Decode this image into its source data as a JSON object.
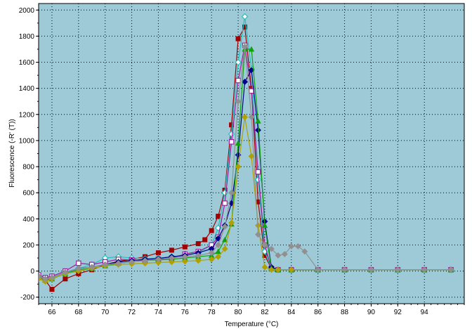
{
  "chart_data": {
    "type": "line",
    "title": "",
    "xlabel": "Temperature (°C)",
    "ylabel": "Fluorescence (-R' (T))",
    "xlim": [
      65,
      97
    ],
    "ylim": [
      -250,
      2050
    ],
    "x_tick_labels": [
      "66",
      "68",
      "70",
      "72",
      "74",
      "76",
      "78",
      "80",
      "82",
      "84",
      "86",
      "88",
      "90",
      "92",
      "94"
    ],
    "y_tick_labels": [
      "-200",
      "0",
      "200",
      "400",
      "600",
      "800",
      "1000",
      "1200",
      "1400",
      "1600",
      "1800",
      "2000"
    ],
    "grid": true,
    "legend": "none",
    "plot_background": "#9ECAD8",
    "series": [
      {
        "color": "#A00000",
        "marker": "square-filled",
        "x": [
          65,
          65.5,
          66,
          67,
          68,
          69,
          70,
          71,
          72,
          73,
          74,
          75,
          76,
          77,
          77.5,
          78,
          78.5,
          79,
          79.5,
          80,
          80.5,
          81,
          81.5,
          82,
          82.5,
          83,
          84,
          86,
          88,
          90,
          92,
          94,
          96
        ],
        "y": [
          -50,
          -70,
          -140,
          -60,
          -20,
          10,
          50,
          75,
          90,
          110,
          140,
          160,
          185,
          210,
          240,
          310,
          420,
          620,
          1120,
          1780,
          1870,
          1400,
          530,
          120,
          20,
          10,
          10,
          10,
          10,
          10,
          10,
          10,
          10
        ]
      },
      {
        "color": "#20C0C0",
        "marker": "diamond-open",
        "x": [
          65,
          65.5,
          66,
          67,
          68,
          69,
          70,
          71,
          72,
          73,
          74,
          75,
          76,
          77,
          78,
          78.5,
          79,
          79.5,
          80,
          80.5,
          81,
          81.5,
          82,
          82.5,
          83,
          84,
          86,
          88,
          90,
          92,
          94,
          96
        ],
        "y": [
          -40,
          -70,
          -60,
          -20,
          20,
          50,
          100,
          110,
          100,
          95,
          100,
          110,
          120,
          140,
          200,
          330,
          600,
          1050,
          1600,
          1950,
          1550,
          700,
          150,
          20,
          10,
          10,
          10,
          10,
          10,
          10,
          10,
          10
        ]
      },
      {
        "color": "#A020A0",
        "marker": "square-open",
        "x": [
          65,
          65.5,
          66,
          67,
          68,
          69,
          70,
          71,
          72,
          73,
          74,
          75,
          76,
          77,
          78,
          78.5,
          79,
          79.5,
          80,
          80.5,
          81,
          81.5,
          82,
          82.5,
          83,
          84,
          86,
          88,
          90,
          92,
          94,
          96
        ],
        "y": [
          -30,
          -50,
          -40,
          0,
          60,
          50,
          70,
          90,
          85,
          80,
          90,
          100,
          130,
          150,
          200,
          260,
          520,
          990,
          1460,
          1730,
          1380,
          760,
          200,
          20,
          10,
          10,
          10,
          10,
          10,
          10,
          10,
          10
        ]
      },
      {
        "color": "#00008B",
        "marker": "diamond-filled",
        "x": [
          65,
          65.5,
          66,
          67,
          68,
          69,
          70,
          71,
          72,
          73,
          74,
          75,
          76,
          77,
          78,
          78.5,
          79,
          79.5,
          80,
          80.5,
          81,
          81.5,
          82,
          82.5,
          83,
          84,
          86,
          88,
          90,
          92,
          94,
          96
        ],
        "y": [
          -40,
          -60,
          -50,
          -10,
          20,
          30,
          50,
          70,
          80,
          90,
          95,
          110,
          120,
          140,
          170,
          250,
          350,
          520,
          890,
          1450,
          1540,
          1080,
          380,
          30,
          10,
          10,
          10,
          10,
          10,
          10,
          10,
          10
        ]
      },
      {
        "color": "#10A010",
        "marker": "triangle-filled",
        "x": [
          65,
          65.5,
          66,
          67,
          68,
          69,
          70,
          71,
          72,
          73,
          74,
          75,
          76,
          77,
          78,
          78.5,
          79,
          79.5,
          80,
          80.5,
          81,
          81.5,
          82,
          82.5,
          83,
          84,
          86,
          88,
          90,
          92,
          94,
          96
        ],
        "y": [
          -50,
          -70,
          -60,
          -20,
          10,
          20,
          40,
          60,
          70,
          80,
          85,
          90,
          100,
          110,
          120,
          150,
          240,
          360,
          980,
          1700,
          1700,
          1150,
          350,
          20,
          10,
          10,
          10,
          10,
          10,
          10,
          10,
          10
        ]
      },
      {
        "color": "#B0A000",
        "marker": "diamond-filled",
        "x": [
          65,
          65.5,
          66,
          67,
          68,
          69,
          70,
          71,
          72,
          73,
          74,
          75,
          76,
          77,
          78,
          78.5,
          79,
          79.5,
          80,
          80.5,
          81,
          81.5,
          82,
          82.5,
          83,
          84,
          86,
          88,
          90,
          92,
          94,
          96
        ],
        "y": [
          -60,
          -80,
          -60,
          -20,
          0,
          20,
          40,
          50,
          55,
          60,
          65,
          70,
          75,
          80,
          90,
          110,
          170,
          370,
          800,
          1180,
          880,
          350,
          30,
          10,
          10,
          10,
          10,
          10,
          10,
          10,
          10,
          10
        ]
      },
      {
        "color": "#909090",
        "marker": "diamond-filled",
        "x": [
          65,
          65.5,
          66,
          67,
          68,
          69,
          70,
          71,
          72,
          73,
          74,
          75,
          76,
          77,
          78,
          78.5,
          79,
          79.5,
          80,
          80.5,
          81,
          81.5,
          82,
          82.5,
          83,
          83.5,
          84,
          84.5,
          85,
          86,
          88,
          90,
          92,
          94,
          96
        ],
        "y": [
          -40,
          -60,
          -50,
          -10,
          20,
          30,
          50,
          60,
          70,
          80,
          90,
          100,
          110,
          120,
          140,
          200,
          340,
          600,
          1300,
          1720,
          1180,
          280,
          200,
          170,
          120,
          130,
          190,
          190,
          150,
          10,
          10,
          10,
          10,
          10,
          10
        ]
      }
    ]
  }
}
